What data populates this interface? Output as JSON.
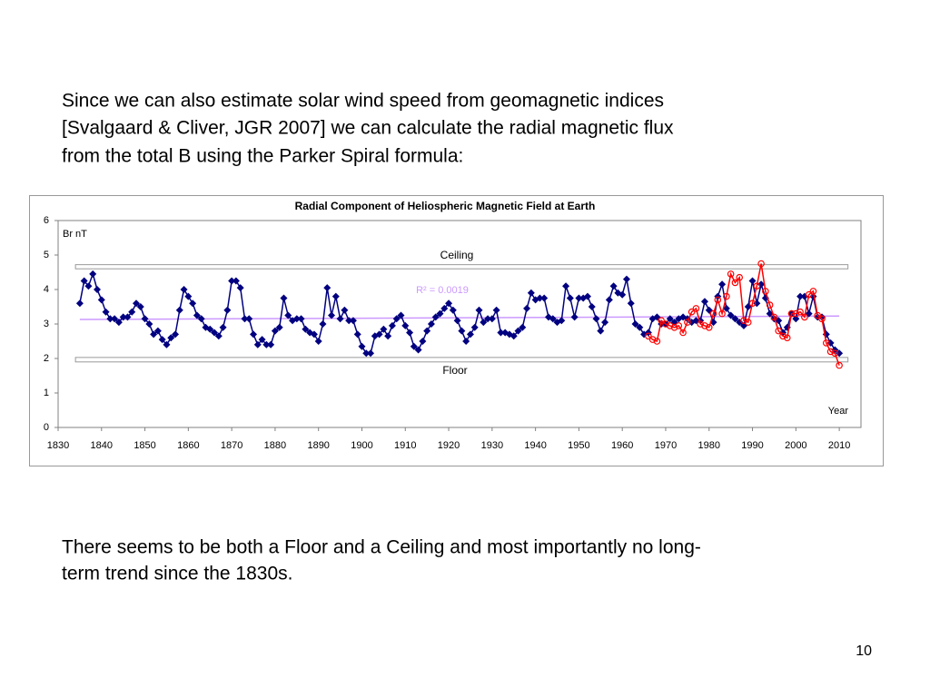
{
  "slide_text": {
    "paragraph_1": [
      "Since we can also estimate solar wind speed from geomagnetic indices",
      "[Svalgaard & Cliver, JGR 2007] we can calculate the radial magnetic flux",
      "from the total B using the Parker Spiral formula:"
    ],
    "paragraph_2": [
      "There seems to be both a Floor and a Ceiling and most importantly no long-",
      "term trend since the 1830s."
    ],
    "page_number": "10"
  },
  "chart_data": {
    "type": "line",
    "title": "Radial Component of Heliospheric Magnetic Field at Earth",
    "y_label": "Br nT",
    "x_label": "Year",
    "xlim": [
      1830,
      2015
    ],
    "ylim": [
      0,
      6
    ],
    "xticks": [
      1830,
      1840,
      1850,
      1860,
      1870,
      1880,
      1890,
      1900,
      1910,
      1920,
      1930,
      1940,
      1950,
      1960,
      1970,
      1980,
      1990,
      2000,
      2010
    ],
    "yticks": [
      0,
      1,
      2,
      3,
      4,
      5,
      6
    ],
    "grid": false,
    "series": [
      {
        "color": "#000080",
        "marker": "diamond",
        "x": [
          1835,
          1836,
          1837,
          1838,
          1839,
          1840,
          1841,
          1842,
          1843,
          1844,
          1845,
          1846,
          1847,
          1848,
          1849,
          1850,
          1851,
          1852,
          1853,
          1854,
          1855,
          1856,
          1857,
          1858,
          1859,
          1860,
          1861,
          1862,
          1863,
          1864,
          1865,
          1866,
          1867,
          1868,
          1869,
          1870,
          1871,
          1872,
          1873,
          1874,
          1875,
          1876,
          1877,
          1878,
          1879,
          1880,
          1881,
          1882,
          1883,
          1884,
          1885,
          1886,
          1887,
          1888,
          1889,
          1890,
          1891,
          1892,
          1893,
          1894,
          1895,
          1896,
          1897,
          1898,
          1899,
          1900,
          1901,
          1902,
          1903,
          1904,
          1905,
          1906,
          1907,
          1908,
          1909,
          1910,
          1911,
          1912,
          1913,
          1914,
          1915,
          1916,
          1917,
          1918,
          1919,
          1920,
          1921,
          1922,
          1923,
          1924,
          1925,
          1926,
          1927,
          1928,
          1929,
          1930,
          1931,
          1932,
          1933,
          1934,
          1935,
          1936,
          1937,
          1938,
          1939,
          1940,
          1941,
          1942,
          1943,
          1944,
          1945,
          1946,
          1947,
          1948,
          1949,
          1950,
          1951,
          1952,
          1953,
          1954,
          1955,
          1956,
          1957,
          1958,
          1959,
          1960,
          1961,
          1962,
          1963,
          1964,
          1965,
          1966,
          1967,
          1968,
          1969,
          1970,
          1971,
          1972,
          1973,
          1974,
          1975,
          1976,
          1977,
          1978,
          1979,
          1980,
          1981,
          1982,
          1983,
          1984,
          1985,
          1986,
          1987,
          1988,
          1989,
          1990,
          1991,
          1992,
          1993,
          1994,
          1995,
          1996,
          1997,
          1998,
          1999,
          2000,
          2001,
          2002,
          2003,
          2004,
          2005,
          2006,
          2007,
          2008,
          2009,
          2010
        ],
        "values": [
          3.6,
          4.25,
          4.1,
          4.45,
          4.0,
          3.7,
          3.35,
          3.15,
          3.15,
          3.05,
          3.2,
          3.2,
          3.35,
          3.6,
          3.5,
          3.15,
          3.0,
          2.7,
          2.8,
          2.55,
          2.4,
          2.6,
          2.7,
          3.4,
          4.0,
          3.8,
          3.6,
          3.25,
          3.15,
          2.9,
          2.85,
          2.75,
          2.65,
          2.9,
          3.4,
          4.25,
          4.25,
          4.05,
          3.15,
          3.15,
          2.7,
          2.4,
          2.55,
          2.4,
          2.4,
          2.8,
          2.9,
          3.75,
          3.25,
          3.1,
          3.15,
          3.15,
          2.85,
          2.75,
          2.7,
          2.5,
          3.0,
          4.05,
          3.25,
          3.8,
          3.15,
          3.4,
          3.1,
          3.1,
          2.7,
          2.35,
          2.15,
          2.15,
          2.65,
          2.7,
          2.85,
          2.65,
          2.95,
          3.15,
          3.25,
          2.95,
          2.75,
          2.35,
          2.25,
          2.5,
          2.8,
          3.0,
          3.2,
          3.3,
          3.45,
          3.6,
          3.4,
          3.1,
          2.8,
          2.5,
          2.7,
          2.9,
          3.4,
          3.05,
          3.15,
          3.15,
          3.4,
          2.75,
          2.75,
          2.7,
          2.65,
          2.8,
          2.9,
          3.45,
          3.9,
          3.7,
          3.75,
          3.75,
          3.2,
          3.15,
          3.05,
          3.1,
          4.1,
          3.75,
          3.2,
          3.75,
          3.75,
          3.8,
          3.5,
          3.15,
          2.8,
          3.05,
          3.7,
          4.1,
          3.9,
          3.85,
          4.3,
          3.6,
          3.0,
          2.9,
          2.7,
          2.75,
          3.15,
          3.2,
          3.0,
          3.0,
          3.15,
          3.05,
          3.15,
          3.2,
          3.15,
          3.05,
          3.1,
          3.1,
          3.65,
          3.4,
          3.05,
          3.8,
          4.15,
          3.45,
          3.25,
          3.15,
          3.05,
          2.95,
          3.5,
          4.25,
          3.6,
          4.15,
          3.75,
          3.3,
          3.15,
          3.1,
          2.75,
          2.9,
          3.3,
          3.15,
          3.8,
          3.8,
          3.3,
          3.8,
          3.2,
          3.2,
          2.7,
          2.45,
          2.25,
          2.15
        ]
      },
      {
        "color": "#ff0000",
        "marker": "circle",
        "x": [
          1966,
          1967,
          1968,
          1969,
          1970,
          1971,
          1972,
          1973,
          1974,
          1975,
          1976,
          1977,
          1978,
          1979,
          1980,
          1981,
          1982,
          1983,
          1984,
          1985,
          1986,
          1987,
          1988,
          1989,
          1990,
          1991,
          1992,
          1993,
          1994,
          1995,
          1996,
          1997,
          1998,
          1999,
          2000,
          2001,
          2002,
          2003,
          2004,
          2005,
          2006,
          2007,
          2008,
          2009,
          2010
        ],
        "values": [
          2.65,
          2.55,
          2.5,
          3.1,
          3.0,
          2.95,
          2.9,
          2.95,
          2.75,
          3.05,
          3.35,
          3.45,
          3.0,
          2.95,
          2.9,
          3.3,
          3.7,
          3.3,
          3.8,
          4.45,
          4.2,
          4.35,
          3.1,
          3.05,
          3.6,
          4.1,
          4.75,
          3.95,
          3.55,
          3.2,
          2.8,
          2.65,
          2.6,
          3.3,
          3.3,
          3.35,
          3.2,
          3.85,
          3.95,
          3.25,
          3.15,
          2.45,
          2.2,
          2.15,
          1.8
        ]
      }
    ],
    "trendline": {
      "color": "#cc99ff",
      "label": "R² = 0.0019",
      "x": [
        1835,
        2010
      ],
      "values": [
        3.13,
        3.23
      ]
    },
    "ceiling": {
      "label": "Ceiling",
      "x": [
        1834,
        2012
      ],
      "range": [
        4.6,
        4.72
      ]
    },
    "floor": {
      "label": "Floor",
      "x": [
        1834,
        2012
      ],
      "range": [
        1.9,
        2.03
      ]
    }
  }
}
